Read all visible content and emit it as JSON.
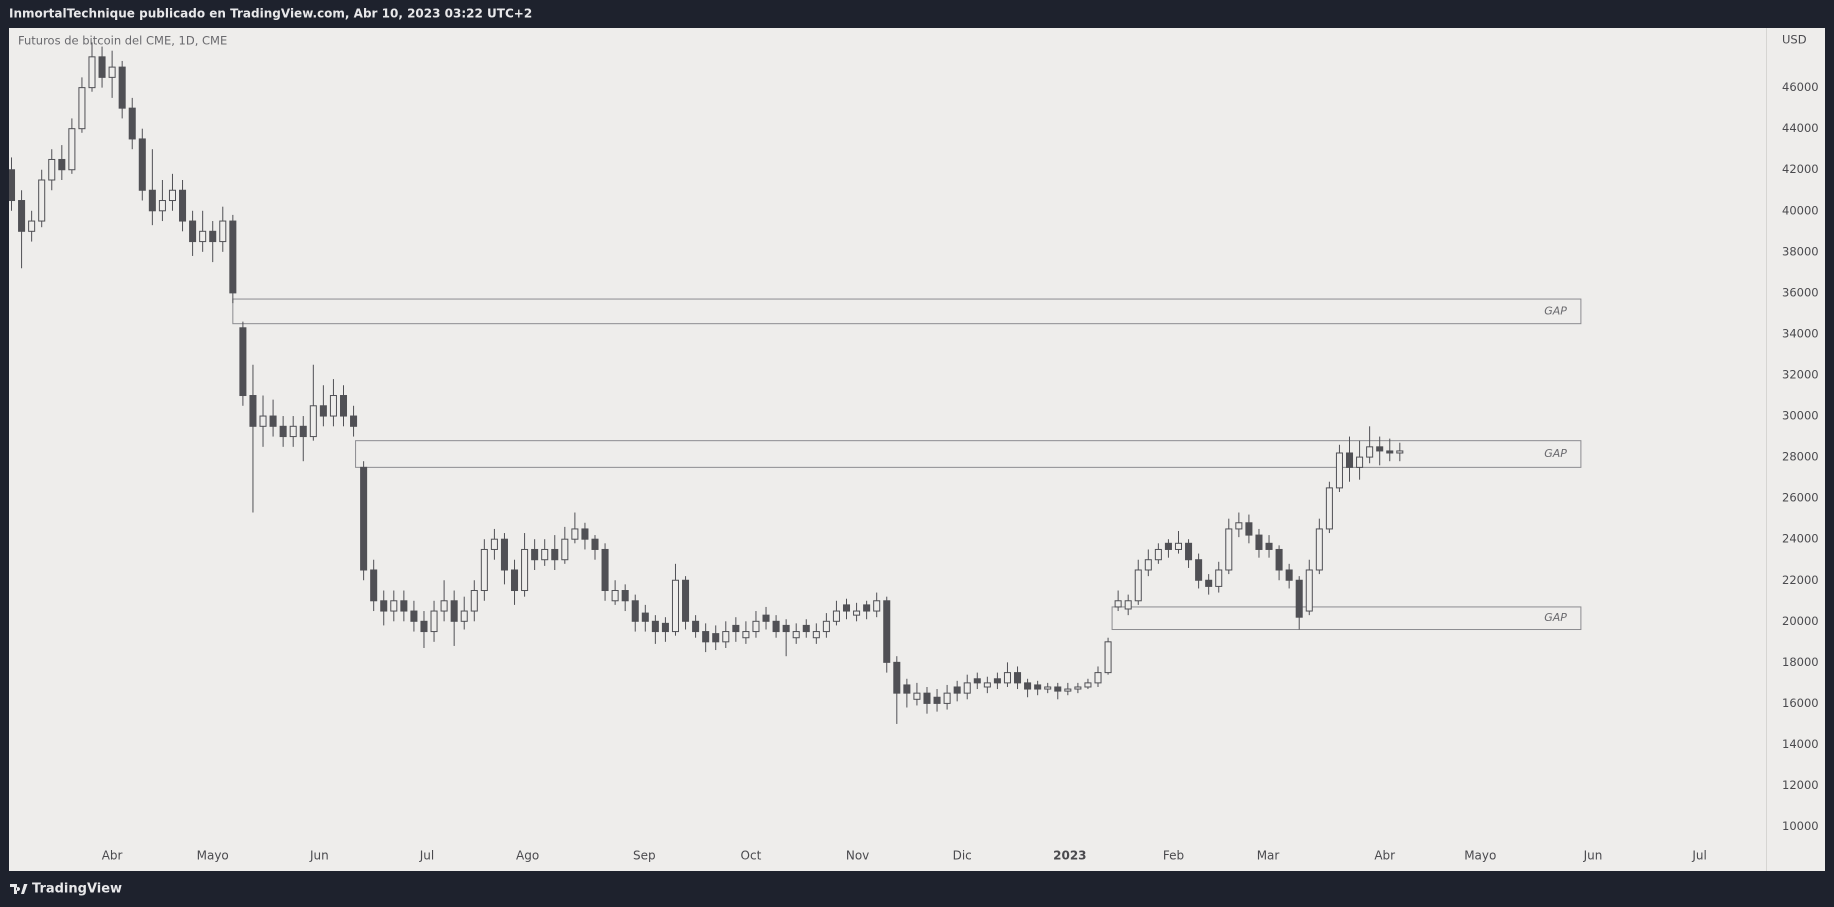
{
  "header": "InmortalTechnique publicado en TradingView.com, Abr 10, 2023 03:22 UTC+2",
  "footer": "TradingView",
  "chart_data": {
    "type": "candlestick",
    "title": "Futuros de bitcoin del CME, 1D, CME",
    "y_unit": "USD",
    "up_color": "#eeedeb",
    "down_color": "#505055",
    "outline_color": "#505055",
    "grid": false,
    "xlim": [
      -0.25,
      174.4
    ],
    "xticks": [
      {
        "value": 10,
        "label": "Abr"
      },
      {
        "value": 20,
        "label": "Mayo"
      },
      {
        "value": 30.6,
        "label": "Jun"
      },
      {
        "value": 41.3,
        "label": "Jul"
      },
      {
        "value": 51.3,
        "label": "Ago"
      },
      {
        "value": 62.9,
        "label": "Sep"
      },
      {
        "value": 73.5,
        "label": "Oct"
      },
      {
        "value": 84.1,
        "label": "Nov"
      },
      {
        "value": 94.5,
        "label": "Dic"
      },
      {
        "value": 105.2,
        "label": "2023"
      },
      {
        "value": 115.5,
        "label": "Feb"
      },
      {
        "value": 124.9,
        "label": "Mar"
      },
      {
        "value": 136.5,
        "label": "Abr"
      },
      {
        "value": 146,
        "label": "Mayo"
      },
      {
        "value": 157.2,
        "label": "Jun"
      },
      {
        "value": 167.8,
        "label": "Jul"
      }
    ],
    "ylim": [
      7835,
      48905
    ],
    "yticks": [
      10000,
      12000,
      14000,
      16000,
      18000,
      20000,
      22000,
      24000,
      26000,
      28000,
      30000,
      32000,
      34000,
      36000,
      38000,
      40000,
      42000,
      44000,
      46000
    ],
    "open": [
      42000,
      40500,
      39000,
      39500,
      41500,
      42500,
      42000,
      44000,
      46000,
      47500,
      46500,
      47000,
      45000,
      43500,
      41000,
      40000,
      40500,
      41000,
      39500,
      38500,
      39000,
      38500,
      39500,
      34300,
      31000,
      29500,
      30000,
      29500,
      29000,
      29500,
      29000,
      30500,
      30000,
      31000,
      30000,
      27500,
      22500,
      21000,
      20500,
      21000,
      20500,
      20000,
      19500,
      20500,
      21000,
      20000,
      20500,
      21500,
      23500,
      24000,
      22500,
      21500,
      23500,
      23000,
      23500,
      23000,
      24000,
      24500,
      24000,
      23500,
      21000,
      21500,
      21000,
      20400,
      20000,
      19900,
      19500,
      22000,
      20000,
      19500,
      19400,
      19000,
      19800,
      19200,
      19500,
      20300,
      20000,
      19800,
      19200,
      19800,
      19200,
      19500,
      20000,
      20800,
      20300,
      20800,
      20500,
      21000,
      18000,
      16900,
      16200,
      16500,
      16300,
      16000,
      16800,
      16500,
      17200,
      16800,
      17200,
      17000,
      17500,
      17000,
      16900,
      16700,
      16800,
      16600,
      16700,
      16800,
      17000,
      17500,
      20700,
      20600,
      21000,
      22500,
      23000,
      23800,
      23500,
      23800,
      23000,
      22000,
      21700,
      22500,
      24500,
      24800,
      24200,
      23800,
      23500,
      22500,
      22000,
      20500,
      22500,
      24500,
      26500,
      28200,
      27500,
      28000,
      28500,
      28300,
      28200
    ],
    "high": [
      42600,
      41000,
      40000,
      42000,
      43000,
      43200,
      44500,
      46500,
      48200,
      48000,
      47800,
      47300,
      45500,
      44000,
      43000,
      41500,
      41800,
      41500,
      40000,
      40000,
      39500,
      40200,
      39800,
      34600,
      32500,
      31000,
      30800,
      30000,
      30000,
      30000,
      32500,
      31500,
      31800,
      31500,
      30500,
      27800,
      23000,
      21500,
      21500,
      21500,
      21000,
      20500,
      21000,
      22000,
      21500,
      21200,
      22000,
      24000,
      24500,
      24300,
      23000,
      24300,
      24000,
      24000,
      24200,
      24600,
      25300,
      24800,
      24200,
      23800,
      22000,
      21800,
      21300,
      20800,
      20300,
      20200,
      22800,
      22200,
      20300,
      19900,
      19800,
      20000,
      20200,
      20000,
      20500,
      20700,
      20300,
      20100,
      19900,
      20100,
      19900,
      20400,
      21000,
      21100,
      20900,
      21000,
      21400,
      21200,
      18300,
      17200,
      17000,
      16800,
      16700,
      16900,
      17100,
      17400,
      17500,
      17300,
      17500,
      18000,
      17800,
      17200,
      17100,
      17000,
      17000,
      17000,
      17000,
      17200,
      17800,
      19200,
      21500,
      21300,
      23000,
      23500,
      23800,
      24000,
      24400,
      24000,
      23300,
      22300,
      22900,
      25000,
      25300,
      25200,
      24500,
      24200,
      23700,
      22800,
      22200,
      23000,
      25000,
      26800,
      28600,
      29000,
      28800,
      29500,
      29000,
      28900,
      28700
    ],
    "low": [
      40000,
      37200,
      38500,
      39200,
      41000,
      41500,
      41800,
      43800,
      45800,
      46000,
      45500,
      44500,
      43000,
      40500,
      39300,
      39500,
      40000,
      39000,
      37800,
      38000,
      37500,
      38000,
      35500,
      30500,
      25300,
      28500,
      29000,
      28500,
      28500,
      27800,
      28800,
      29500,
      29500,
      29500,
      29000,
      22000,
      20500,
      19800,
      20000,
      20000,
      19500,
      18700,
      19000,
      20000,
      18800,
      19600,
      20000,
      21000,
      23000,
      21800,
      20800,
      21200,
      22500,
      22700,
      22500,
      22800,
      23800,
      23500,
      23000,
      21000,
      20800,
      20500,
      19500,
      19500,
      18900,
      19000,
      19300,
      19600,
      19200,
      18500,
      18600,
      18700,
      19000,
      18900,
      19200,
      19600,
      19200,
      18300,
      18900,
      19200,
      18900,
      19200,
      19800,
      20100,
      20000,
      20100,
      20200,
      17500,
      15000,
      15800,
      15900,
      15500,
      15600,
      15700,
      16100,
      16200,
      16700,
      16500,
      16700,
      16800,
      16700,
      16300,
      16400,
      16500,
      16200,
      16400,
      16500,
      16700,
      16800,
      17400,
      20500,
      20300,
      20800,
      22200,
      22800,
      23100,
      23300,
      22600,
      21600,
      21300,
      21400,
      22300,
      24100,
      23800,
      23100,
      23100,
      22000,
      21600,
      19600,
      20300,
      22300,
      24300,
      26300,
      26800,
      26900,
      27700,
      27600,
      27800,
      27800
    ],
    "close": [
      40500,
      39000,
      39500,
      41500,
      42500,
      42000,
      44000,
      46000,
      47500,
      46500,
      47000,
      45000,
      43500,
      41000,
      40000,
      40500,
      41000,
      39500,
      38500,
      39000,
      38500,
      39500,
      36000,
      31000,
      29500,
      30000,
      29500,
      29000,
      29500,
      29000,
      30500,
      30000,
      31000,
      30000,
      29500,
      22500,
      21000,
      20500,
      21000,
      20500,
      20000,
      19500,
      20500,
      21000,
      20000,
      20500,
      21500,
      23500,
      24000,
      22500,
      21500,
      23500,
      23000,
      23500,
      23000,
      24000,
      24500,
      24000,
      23500,
      21500,
      21500,
      21000,
      20000,
      20000,
      19500,
      19500,
      22000,
      20000,
      19500,
      19000,
      19000,
      19500,
      19500,
      19500,
      20000,
      20000,
      19500,
      19500,
      19500,
      19500,
      19500,
      20000,
      20500,
      20500,
      20500,
      20500,
      21000,
      18000,
      16500,
      16500,
      16500,
      16000,
      16000,
      16500,
      16500,
      17000,
      17000,
      17000,
      17000,
      17500,
      17000,
      16700,
      16700,
      16800,
      16600,
      16700,
      16800,
      17000,
      17500,
      19000,
      21000,
      21000,
      22500,
      23000,
      23500,
      23500,
      23800,
      23000,
      22000,
      21700,
      22500,
      24500,
      24800,
      24200,
      23500,
      23500,
      22500,
      22000,
      20200,
      22500,
      24500,
      26500,
      28200,
      27500,
      28000,
      28500,
      28300,
      28200,
      28300
    ],
    "zones": [
      {
        "label": "GAP",
        "low": 34500,
        "high": 35700,
        "start": 22,
        "end": 156
      },
      {
        "label": "GAP",
        "low": 27500,
        "high": 28800,
        "start": 34.2,
        "end": 156
      },
      {
        "label": "GAP",
        "low": 19600,
        "high": 20700,
        "start": 109.4,
        "end": 156
      }
    ]
  }
}
